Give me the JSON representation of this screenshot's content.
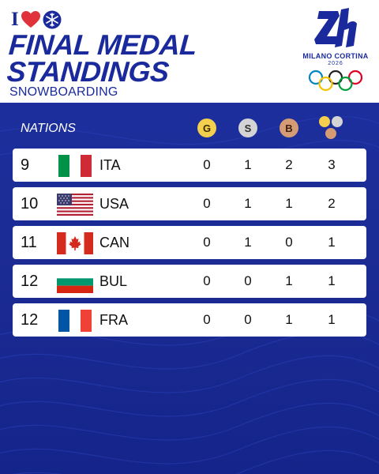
{
  "header": {
    "brand_letter": "I",
    "title_line1": "FINAL MEDAL",
    "title_line2": "STANDINGS",
    "subtitle": "SNOWBOARDING",
    "logo_name": "MILANO CORTINA",
    "logo_year": "2026"
  },
  "table": {
    "nations_label": "NATIONS",
    "gold_label": "G",
    "silver_label": "S",
    "bronze_label": "B",
    "rows": [
      {
        "rank": "9",
        "code": "ITA",
        "gold": "0",
        "silver": "1",
        "bronze": "2",
        "total": "3"
      },
      {
        "rank": "10",
        "code": "USA",
        "gold": "0",
        "silver": "1",
        "bronze": "1",
        "total": "2"
      },
      {
        "rank": "11",
        "code": "CAN",
        "gold": "0",
        "silver": "1",
        "bronze": "0",
        "total": "1"
      },
      {
        "rank": "12",
        "code": "BUL",
        "gold": "0",
        "silver": "0",
        "bronze": "1",
        "total": "1"
      },
      {
        "rank": "12",
        "code": "FRA",
        "gold": "0",
        "silver": "0",
        "bronze": "1",
        "total": "1"
      }
    ]
  },
  "colors": {
    "brand_blue": "#1a2a9c",
    "gold": "#f3cf4d",
    "silver": "#d4d4d4",
    "bronze": "#d49b74",
    "heart": "#e0323a"
  },
  "icons": [
    "heart-icon",
    "snowflake-icon",
    "milano-cortina-logo",
    "olympic-rings-icon",
    "medals-total-icon"
  ]
}
